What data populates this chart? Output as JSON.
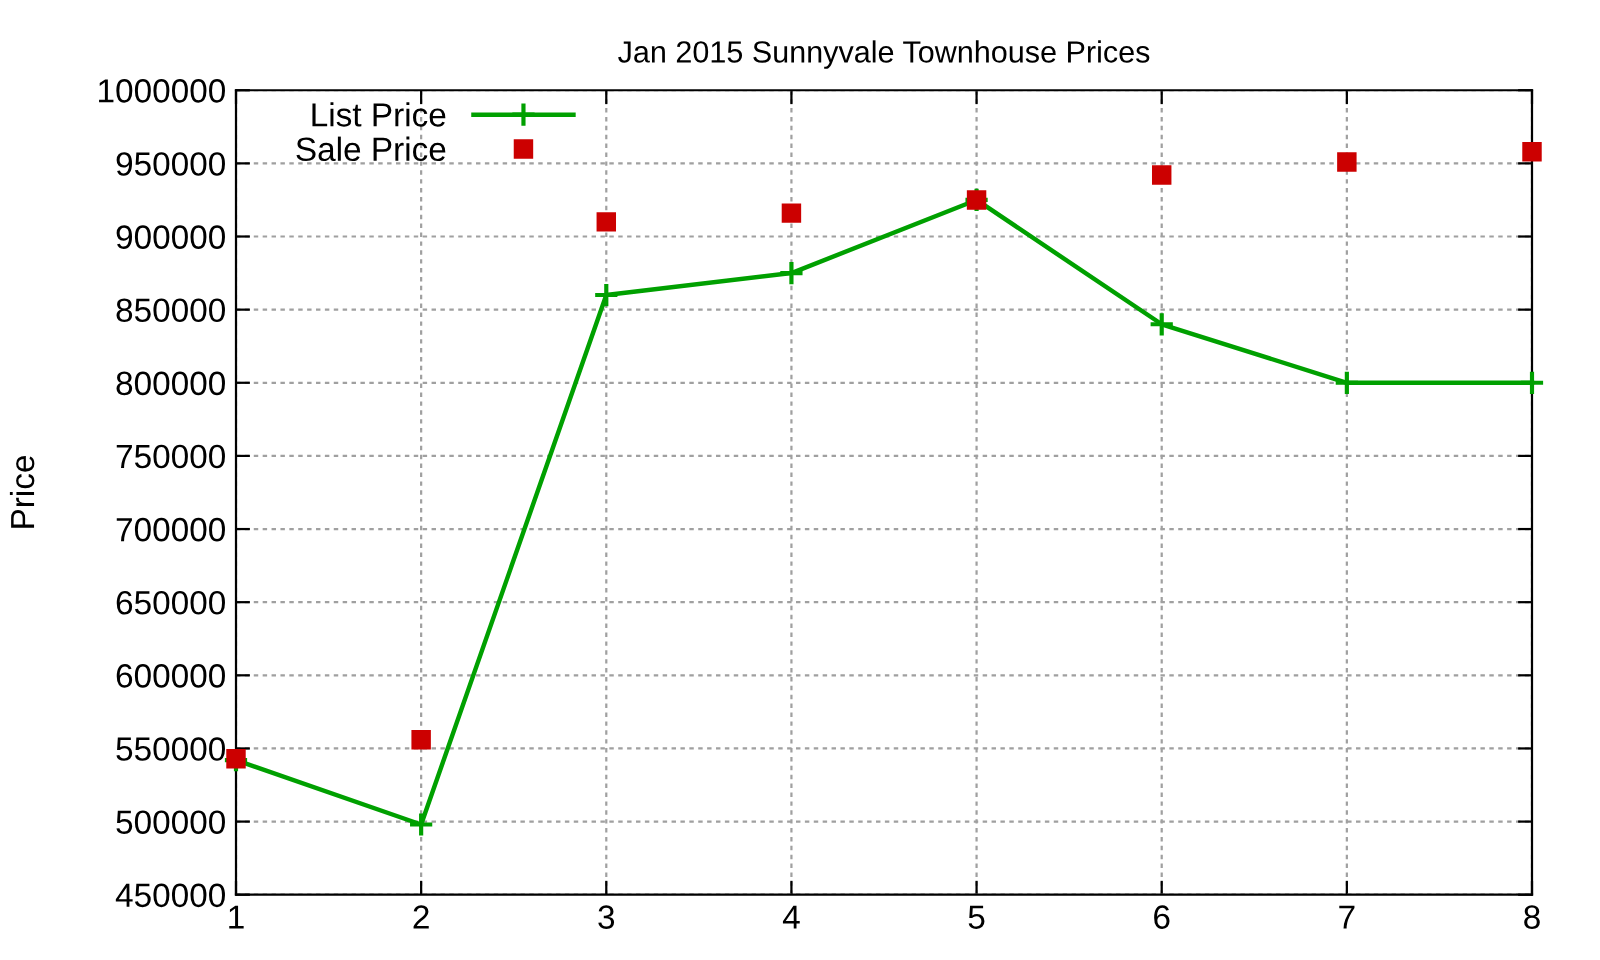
{
  "chart_data": {
    "type": "line",
    "title": "Jan 2015 Sunnyvale Townhouse Prices",
    "ylabel": "Price",
    "x": [
      1,
      2,
      3,
      4,
      5,
      6,
      7,
      8
    ],
    "series": [
      {
        "name": "List Price",
        "color": "#00a000",
        "marker": "cross",
        "values": [
          542000,
          498000,
          860000,
          875000,
          925000,
          840000,
          800000,
          800000
        ]
      },
      {
        "name": "Sale Price",
        "color": "#cc0000",
        "type": "scatter",
        "marker": "square",
        "values": [
          543000,
          556000,
          910000,
          916000,
          925000,
          942000,
          951000,
          958000
        ]
      }
    ],
    "xlim": [
      1,
      8
    ],
    "xticks": [
      1,
      2,
      3,
      4,
      5,
      6,
      7,
      8
    ],
    "ylim": [
      450000,
      1000000
    ],
    "yticks": [
      450000,
      500000,
      550000,
      600000,
      650000,
      700000,
      750000,
      800000,
      850000,
      900000,
      950000,
      1000000
    ],
    "grid": true,
    "legend": "top left"
  }
}
